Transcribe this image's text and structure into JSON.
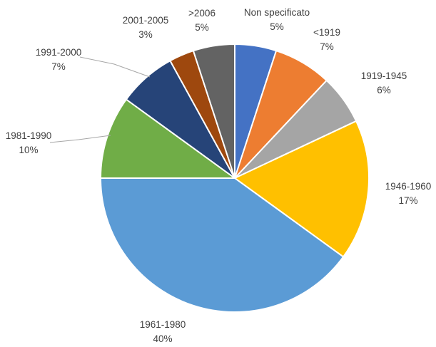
{
  "chart_data": {
    "type": "pie",
    "title": "",
    "start_angle_deg": 0,
    "direction": "clockwise",
    "slices": [
      {
        "label": "Non specificato",
        "value": 5,
        "value_label": "5%",
        "color": "#4472c4"
      },
      {
        "label": "<1919",
        "value": 7,
        "value_label": "7%",
        "color": "#ed7d31"
      },
      {
        "label": "1919-1945",
        "value": 6,
        "value_label": "6%",
        "color": "#a5a5a5"
      },
      {
        "label": "1946-1960",
        "value": 17,
        "value_label": "17%",
        "color": "#ffc000"
      },
      {
        "label": "1961-1980",
        "value": 40,
        "value_label": "40%",
        "color": "#5b9bd5"
      },
      {
        "label": "1981-1990",
        "value": 10,
        "value_label": "10%",
        "color": "#70ad47"
      },
      {
        "label": "1991-2000",
        "value": 7,
        "value_label": "7%",
        "color": "#264478"
      },
      {
        "label": "2001-2005",
        "value": 3,
        "value_label": "3%",
        "color": "#9e480e"
      },
      {
        "label": ">2006",
        "value": 5,
        "value_label": "5%",
        "color": "#636363"
      }
    ],
    "legend": "none"
  }
}
